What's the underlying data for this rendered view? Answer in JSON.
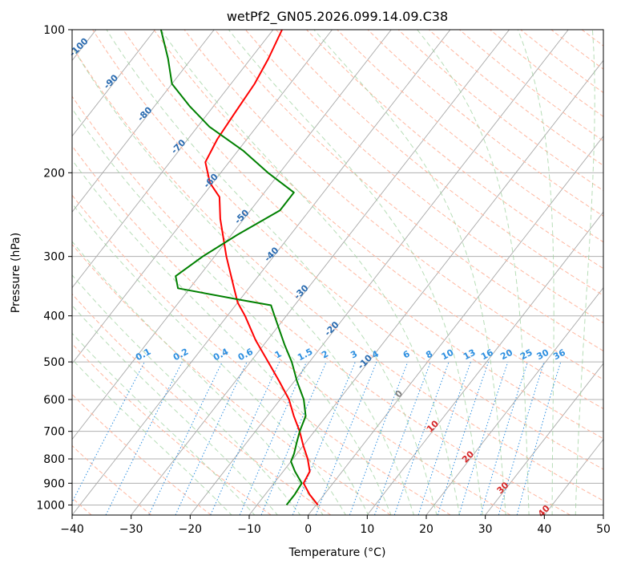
{
  "chart_data": {
    "type": "line",
    "title": "wetPf2_GN05.2026.099.14.09.C38",
    "xlabel": "Temperature (°C)",
    "ylabel": "Pressure (hPa)",
    "xlim": [
      -40,
      50
    ],
    "ylim": [
      1050,
      100
    ],
    "x_ticks": [
      -40,
      -30,
      -20,
      -10,
      0,
      10,
      20,
      30,
      40,
      50
    ],
    "y_ticks": [
      100,
      200,
      300,
      400,
      500,
      600,
      700,
      800,
      900,
      1000
    ],
    "isotherm_labels": [
      "-100",
      "-90",
      "-80",
      "-70",
      "-60",
      "-50",
      "-40",
      "-30",
      "-20",
      "-10",
      "0",
      "10",
      "20",
      "30",
      "40"
    ],
    "mixing_ratio_labels": [
      "0.1",
      "0.2",
      "0.4",
      "0.6",
      "1",
      "1.5",
      "2",
      "3",
      "4",
      "6",
      "8",
      "10",
      "13",
      "16",
      "20",
      "25",
      "30",
      "36"
    ],
    "series": [
      {
        "name": "temperature",
        "color": "#ff0000",
        "points": [
          {
            "p": 1000,
            "t": 0.3
          },
          {
            "p": 950,
            "t": -2.5
          },
          {
            "p": 900,
            "t": -5.0
          },
          {
            "p": 850,
            "t": -5.5
          },
          {
            "p": 800,
            "t": -7.5
          },
          {
            "p": 750,
            "t": -10.0
          },
          {
            "p": 700,
            "t": -12.5
          },
          {
            "p": 650,
            "t": -15.5
          },
          {
            "p": 600,
            "t": -18.5
          },
          {
            "p": 550,
            "t": -22.5
          },
          {
            "p": 500,
            "t": -27.0
          },
          {
            "p": 450,
            "t": -32.0
          },
          {
            "p": 400,
            "t": -37.0
          },
          {
            "p": 375,
            "t": -40.0
          },
          {
            "p": 350,
            "t": -42.5
          },
          {
            "p": 300,
            "t": -48.0
          },
          {
            "p": 250,
            "t": -54.0
          },
          {
            "p": 225,
            "t": -57.0
          },
          {
            "p": 210,
            "t": -60.5
          },
          {
            "p": 190,
            "t": -64.0
          },
          {
            "p": 170,
            "t": -65.0
          },
          {
            "p": 150,
            "t": -65.5
          },
          {
            "p": 130,
            "t": -66.0
          },
          {
            "p": 115,
            "t": -67.0
          },
          {
            "p": 100,
            "t": -68.5
          }
        ]
      },
      {
        "name": "dewpoint",
        "color": "#008000",
        "points": [
          {
            "p": 1000,
            "t": -5.0
          },
          {
            "p": 950,
            "t": -5.0
          },
          {
            "p": 900,
            "t": -5.3
          },
          {
            "p": 850,
            "t": -8.0
          },
          {
            "p": 810,
            "t": -10.0
          },
          {
            "p": 780,
            "t": -10.5
          },
          {
            "p": 740,
            "t": -11.5
          },
          {
            "p": 700,
            "t": -12.5
          },
          {
            "p": 650,
            "t": -13.5
          },
          {
            "p": 600,
            "t": -16.0
          },
          {
            "p": 550,
            "t": -19.5
          },
          {
            "p": 500,
            "t": -23.0
          },
          {
            "p": 460,
            "t": -26.5
          },
          {
            "p": 400,
            "t": -32.0
          },
          {
            "p": 380,
            "t": -34.0
          },
          {
            "p": 370,
            "t": -40.0
          },
          {
            "p": 350,
            "t": -52.0
          },
          {
            "p": 330,
            "t": -54.0
          },
          {
            "p": 300,
            "t": -52.0
          },
          {
            "p": 270,
            "t": -49.0
          },
          {
            "p": 240,
            "t": -45.0
          },
          {
            "p": 220,
            "t": -45.0
          },
          {
            "p": 200,
            "t": -52.0
          },
          {
            "p": 180,
            "t": -59.0
          },
          {
            "p": 160,
            "t": -68.0
          },
          {
            "p": 145,
            "t": -74.0
          },
          {
            "p": 130,
            "t": -80.0
          },
          {
            "p": 115,
            "t": -84.0
          },
          {
            "p": 100,
            "t": -89.0
          }
        ]
      }
    ]
  }
}
